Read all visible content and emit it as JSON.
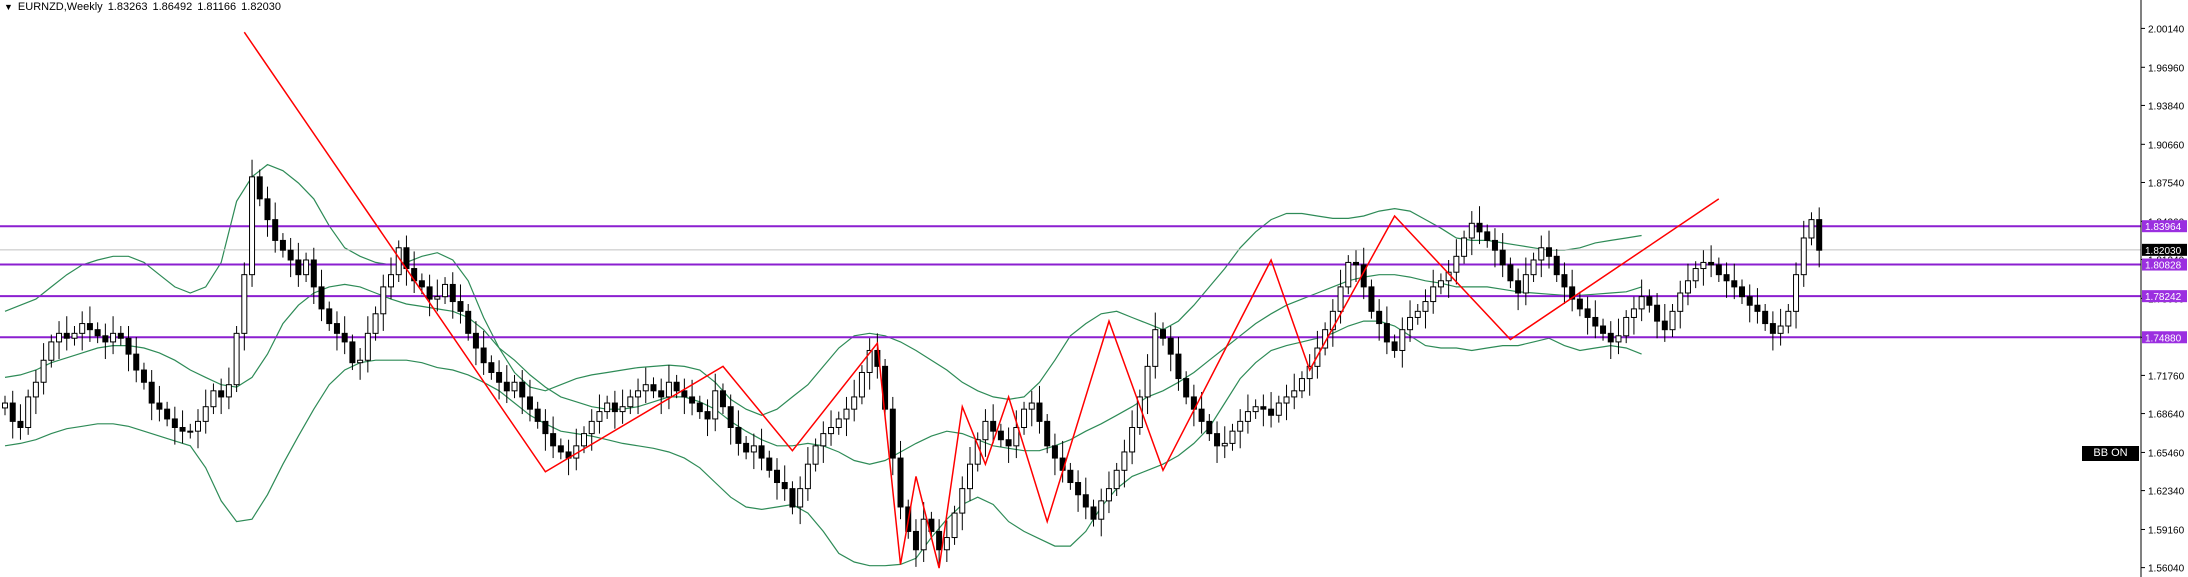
{
  "header": {
    "dropdown_icon": "triangle-down-icon",
    "symbol": "EURNZD,Weekly",
    "open": "1.83263",
    "high": "1.86492",
    "low": "1.81166",
    "close": "1.82030"
  },
  "badge": {
    "label": "BB ON"
  },
  "colors": {
    "background": "#ffffff",
    "candle": "#000000",
    "bollinger": "#2e8b57",
    "zigzag": "#ff0000",
    "level_line": "#8b1fd0",
    "level_label_bg": "#9b2fe0",
    "price_tag_bg": "#000000"
  },
  "chart_data": {
    "type": "candlestick",
    "symbol": "EURNZD",
    "timeframe": "Weekly",
    "ylim": [
      1.556,
      2.014
    ],
    "y_ticks": [
      "2.00140",
      "1.96960",
      "1.93840",
      "1.90660",
      "1.87540",
      "1.84360",
      "1.81240",
      "1.78060",
      "1.74880",
      "1.71760",
      "1.68640",
      "1.65460",
      "1.62340",
      "1.59160",
      "1.56040"
    ],
    "current_price": "1.82030",
    "horizontal_levels": [
      {
        "value": 1.83964,
        "label": "1.83964"
      },
      {
        "value": 1.80828,
        "label": "1.80828"
      },
      {
        "value": 1.78242,
        "label": "1.78242"
      },
      {
        "value": 1.7488,
        "label": "1.74880"
      }
    ],
    "close_prices": [
      1.695,
      1.68,
      1.675,
      1.7,
      1.712,
      1.73,
      1.745,
      1.752,
      1.748,
      1.752,
      1.76,
      1.755,
      1.75,
      1.745,
      1.752,
      1.748,
      1.735,
      1.722,
      1.712,
      1.695,
      1.69,
      1.682,
      1.675,
      1.672,
      1.672,
      1.68,
      1.692,
      1.705,
      1.7,
      1.71,
      1.752,
      1.8,
      1.88,
      1.862,
      1.845,
      1.828,
      1.82,
      1.812,
      1.8,
      1.812,
      1.79,
      1.772,
      1.76,
      1.752,
      1.745,
      1.728,
      1.73,
      1.752,
      1.768,
      1.79,
      1.8,
      1.822,
      1.805,
      1.795,
      1.79,
      1.78,
      1.782,
      1.792,
      1.778,
      1.77,
      1.752,
      1.74,
      1.728,
      1.72,
      1.712,
      1.705,
      1.712,
      1.7,
      1.69,
      1.68,
      1.67,
      1.66,
      1.655,
      1.65,
      1.66,
      1.67,
      1.68,
      1.688,
      1.695,
      1.688,
      1.692,
      1.7,
      1.705,
      1.71,
      1.705,
      1.7,
      1.712,
      1.705,
      1.7,
      1.695,
      1.688,
      1.682,
      1.705,
      1.692,
      1.675,
      1.662,
      1.655,
      1.66,
      1.65,
      1.64,
      1.63,
      1.625,
      1.61,
      1.625,
      1.645,
      1.66,
      1.67,
      1.675,
      1.682,
      1.69,
      1.7,
      1.72,
      1.738,
      1.725,
      1.69,
      1.65,
      1.61,
      1.59,
      1.575,
      1.6,
      1.59,
      1.575,
      1.585,
      1.605,
      1.625,
      1.645,
      1.665,
      1.68,
      1.672,
      1.665,
      1.66,
      1.675,
      1.69,
      1.695,
      1.68,
      1.66,
      1.65,
      1.64,
      1.63,
      1.62,
      1.61,
      1.6,
      1.615,
      1.625,
      1.64,
      1.655,
      1.675,
      1.7,
      1.725,
      1.755,
      1.748,
      1.735,
      1.715,
      1.7,
      1.69,
      1.68,
      1.67,
      1.66,
      1.662,
      1.672,
      1.68,
      1.688,
      1.692,
      1.69,
      1.685,
      1.695,
      1.7,
      1.705,
      1.715,
      1.725,
      1.74,
      1.755,
      1.77,
      1.79,
      1.81,
      1.808,
      1.79,
      1.77,
      1.76,
      1.745,
      1.738,
      1.755,
      1.765,
      1.77,
      1.778,
      1.79,
      1.795,
      1.802,
      1.815,
      1.83,
      1.842,
      1.835,
      1.828,
      1.82,
      1.808,
      1.795,
      1.785,
      1.8,
      1.812,
      1.822,
      1.815,
      1.8,
      1.79,
      1.78,
      1.772,
      1.765,
      1.758,
      1.752,
      1.745,
      1.75,
      1.765,
      1.772,
      1.782,
      1.775,
      1.762,
      1.755,
      1.77,
      1.785,
      1.795,
      1.805,
      1.81,
      1.808,
      1.8,
      1.795,
      1.79,
      1.782,
      1.775,
      1.77,
      1.76,
      1.752,
      1.758,
      1.77,
      1.8,
      1.83,
      1.845,
      1.82
    ],
    "zigzag": [
      {
        "week": 31,
        "price": 1.9983
      },
      {
        "week": 70,
        "price": 1.6388
      },
      {
        "week": 93,
        "price": 1.725
      },
      {
        "week": 102,
        "price": 1.656
      },
      {
        "week": 113,
        "price": 1.744
      },
      {
        "week": 116,
        "price": 1.563
      },
      {
        "week": 118,
        "price": 1.635
      },
      {
        "week": 121,
        "price": 1.56
      },
      {
        "week": 124,
        "price": 1.692
      },
      {
        "week": 127,
        "price": 1.645
      },
      {
        "week": 130,
        "price": 1.7
      },
      {
        "week": 135,
        "price": 1.598
      },
      {
        "week": 143,
        "price": 1.762
      },
      {
        "week": 150,
        "price": 1.64
      },
      {
        "week": 164,
        "price": 1.812
      },
      {
        "week": 169,
        "price": 1.722
      },
      {
        "week": 180,
        "price": 1.848
      },
      {
        "week": 195,
        "price": 1.747
      },
      {
        "week": 222,
        "price": 1.862
      }
    ],
    "bollinger": {
      "period_label": "",
      "middle": [
        1.716,
        1.718,
        1.722,
        1.728,
        1.732,
        1.736,
        1.74,
        1.742,
        1.742,
        1.74,
        1.736,
        1.73,
        1.722,
        1.716,
        1.71,
        1.708,
        1.716,
        1.735,
        1.76,
        1.775,
        1.785,
        1.79,
        1.792,
        1.79,
        1.785,
        1.78,
        1.776,
        1.774,
        1.772,
        1.77,
        1.765,
        1.755,
        1.74,
        1.73,
        1.718,
        1.708,
        1.7,
        1.696,
        1.692,
        1.69,
        1.69,
        1.692,
        1.696,
        1.7,
        1.7,
        1.696,
        1.69,
        1.68,
        1.672,
        1.665,
        1.66,
        1.66,
        1.662,
        1.66,
        1.655,
        1.648,
        1.645,
        1.648,
        1.655,
        1.662,
        1.668,
        1.672,
        1.67,
        1.665,
        1.66,
        1.658,
        1.656,
        1.656,
        1.66,
        1.665,
        1.672,
        1.678,
        1.685,
        1.692,
        1.7,
        1.705,
        1.712,
        1.72,
        1.73,
        1.74,
        1.75,
        1.76,
        1.768,
        1.775,
        1.78,
        1.785,
        1.79,
        1.795,
        1.798,
        1.8,
        1.8,
        1.798,
        1.795,
        1.793,
        1.79,
        1.79,
        1.79,
        1.788,
        1.786,
        1.785,
        1.784,
        1.783,
        1.783,
        1.784,
        1.785,
        1.786,
        1.79
      ],
      "upper": [
        1.77,
        1.775,
        1.78,
        1.79,
        1.8,
        1.808,
        1.812,
        1.815,
        1.815,
        1.81,
        1.8,
        1.79,
        1.785,
        1.79,
        1.81,
        1.86,
        1.88,
        1.89,
        1.885,
        1.875,
        1.862,
        1.84,
        1.822,
        1.815,
        1.81,
        1.808,
        1.81,
        1.815,
        1.818,
        1.812,
        1.795,
        1.765,
        1.74,
        1.72,
        1.708,
        1.705,
        1.71,
        1.715,
        1.718,
        1.72,
        1.722,
        1.724,
        1.725,
        1.726,
        1.725,
        1.722,
        1.712,
        1.698,
        1.69,
        1.685,
        1.69,
        1.7,
        1.71,
        1.725,
        1.74,
        1.75,
        1.752,
        1.75,
        1.745,
        1.738,
        1.73,
        1.722,
        1.712,
        1.705,
        1.7,
        1.698,
        1.7,
        1.712,
        1.73,
        1.75,
        1.76,
        1.768,
        1.77,
        1.765,
        1.76,
        1.755,
        1.762,
        1.775,
        1.79,
        1.805,
        1.822,
        1.835,
        1.845,
        1.85,
        1.85,
        1.848,
        1.846,
        1.846,
        1.848,
        1.852,
        1.854,
        1.852,
        1.845,
        1.838,
        1.83,
        1.828,
        1.828,
        1.826,
        1.824,
        1.822,
        1.82,
        1.82,
        1.822,
        1.826,
        1.828,
        1.83,
        1.832
      ],
      "lower": [
        1.66,
        1.662,
        1.665,
        1.67,
        1.674,
        1.676,
        1.678,
        1.678,
        1.676,
        1.672,
        1.668,
        1.664,
        1.66,
        1.642,
        1.615,
        1.598,
        1.6,
        1.62,
        1.645,
        1.668,
        1.69,
        1.71,
        1.722,
        1.728,
        1.73,
        1.73,
        1.73,
        1.728,
        1.724,
        1.722,
        1.718,
        1.712,
        1.705,
        1.695,
        1.685,
        1.678,
        1.672,
        1.67,
        1.668,
        1.665,
        1.662,
        1.66,
        1.658,
        1.655,
        1.65,
        1.642,
        1.63,
        1.618,
        1.61,
        1.608,
        1.61,
        1.612,
        1.605,
        1.59,
        1.572,
        1.565,
        1.562,
        1.562,
        1.563,
        1.568,
        1.585,
        1.6,
        1.612,
        1.618,
        1.612,
        1.598,
        1.59,
        1.584,
        1.578,
        1.578,
        1.59,
        1.61,
        1.625,
        1.635,
        1.64,
        1.645,
        1.652,
        1.662,
        1.675,
        1.695,
        1.715,
        1.728,
        1.738,
        1.742,
        1.745,
        1.748,
        1.752,
        1.758,
        1.762,
        1.762,
        1.758,
        1.75,
        1.742,
        1.74,
        1.74,
        1.738,
        1.74,
        1.742,
        1.742,
        1.745,
        1.748,
        1.742,
        1.738,
        1.74,
        1.742,
        1.74,
        1.735
      ]
    }
  }
}
